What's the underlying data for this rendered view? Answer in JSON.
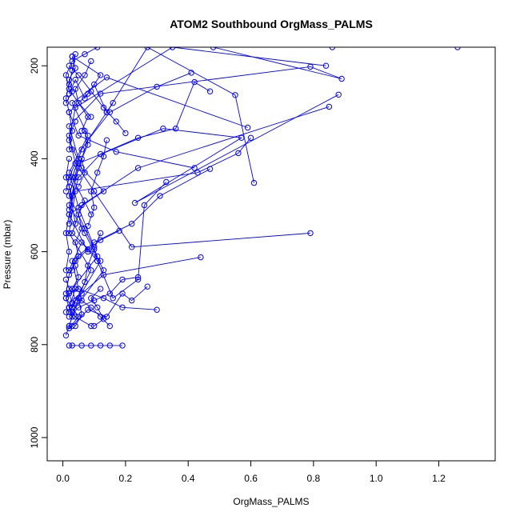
{
  "chart_data": {
    "type": "scatter",
    "title": "ATOM2 Southbound OrgMass_PALMS",
    "xlabel": "OrgMass_PALMS",
    "ylabel": "Pressure (mbar)",
    "xlim": [
      -0.05,
      1.38
    ],
    "ylim": [
      1050,
      160
    ],
    "y_reversed": true,
    "x_ticks": [
      0.0,
      0.2,
      0.4,
      0.6,
      0.8,
      1.0,
      1.2
    ],
    "x_tick_labels": [
      "0.0",
      "0.2",
      "0.4",
      "0.6",
      "0.8",
      "1.0",
      "1.2"
    ],
    "y_ticks": [
      200,
      400,
      600,
      800,
      1000
    ],
    "y_tick_labels": [
      "200",
      "400",
      "600",
      "800",
      "1000"
    ],
    "grid": false,
    "legend": "none",
    "color": "#0000ff",
    "series": [
      {
        "x": [
          0.86,
          1.26,
          0.48,
          0.89,
          0.79,
          0.12,
          0.02,
          0.05,
          0.03,
          0.09
        ],
        "y": [
          160,
          160,
          160,
          228,
          202,
          260,
          330,
          400,
          440,
          520
        ]
      },
      {
        "x": [
          0.84,
          0.35,
          0.04,
          0.02,
          0.06,
          0.13,
          0.02,
          0.08
        ],
        "y": [
          200,
          160,
          290,
          360,
          420,
          470,
          520,
          600
        ]
      },
      {
        "x": [
          0.88,
          0.23,
          0.57,
          0.32,
          0.05,
          0.02,
          0.07,
          0.11,
          0.03
        ],
        "y": [
          262,
          495,
          355,
          335,
          410,
          480,
          550,
          610,
          680
        ]
      },
      {
        "x": [
          0.85,
          0.24,
          0.06,
          0.03,
          0.12,
          0.05,
          0.02
        ],
        "y": [
          288,
          420,
          500,
          560,
          620,
          700,
          760
        ]
      },
      {
        "x": [
          0.59,
          0.14,
          0.03,
          0.08,
          0.02,
          0.05,
          0.1
        ],
        "y": [
          333,
          225,
          280,
          350,
          430,
          505,
          590
        ]
      },
      {
        "x": [
          0.6,
          0.56,
          0.43,
          0.04,
          0.02,
          0.09,
          0.03
        ],
        "y": [
          355,
          388,
          430,
          470,
          560,
          640,
          720
        ]
      },
      {
        "x": [
          0.61,
          0.55,
          0.27,
          0.14,
          0.06,
          0.02,
          0.04
        ],
        "y": [
          452,
          263,
          160,
          300,
          380,
          460,
          540
        ]
      },
      {
        "x": [
          0.79,
          0.22,
          0.1,
          0.05,
          0.02,
          0.07,
          0.13,
          0.03
        ],
        "y": [
          560,
          590,
          470,
          420,
          500,
          560,
          640,
          730
        ]
      },
      {
        "x": [
          0.44,
          0.13,
          0.06,
          0.02,
          0.04,
          0.09
        ],
        "y": [
          612,
          650,
          690,
          720,
          740,
          760
        ]
      },
      {
        "x": [
          0.42,
          0.17,
          0.05,
          0.02,
          0.08,
          0.12,
          0.03
        ],
        "y": [
          420,
          385,
          350,
          300,
          260,
          220,
          180
        ]
      },
      {
        "x": [
          0.47,
          0.31,
          0.22,
          0.1,
          0.03,
          0.05
        ],
        "y": [
          422,
          480,
          540,
          580,
          620,
          680
        ]
      },
      {
        "x": [
          0.47,
          0.42,
          0.36,
          0.24,
          0.12,
          0.05,
          0.02
        ],
        "y": [
          255,
          235,
          335,
          355,
          390,
          440,
          510
        ]
      },
      {
        "x": [
          0.41,
          0.3,
          0.15,
          0.08,
          0.04,
          0.02
        ],
        "y": [
          215,
          245,
          300,
          360,
          440,
          540
        ]
      },
      {
        "x": [
          0.33,
          0.26,
          0.24,
          0.16,
          0.11,
          0.06,
          0.02
        ],
        "y": [
          450,
          500,
          660,
          700,
          620,
          580,
          640
        ]
      },
      {
        "x": [
          0.3,
          0.19,
          0.13,
          0.05,
          0.02,
          0.03
        ],
        "y": [
          725,
          720,
          700,
          680,
          690,
          710
        ]
      },
      {
        "x": [
          0.27,
          0.22,
          0.19,
          0.14,
          0.08,
          0.03
        ],
        "y": [
          675,
          705,
          690,
          740,
          725,
          760
        ]
      },
      {
        "x": [
          0.24,
          0.19,
          0.15,
          0.1,
          0.05,
          0.02
        ],
        "y": [
          655,
          660,
          690,
          705,
          720,
          740
        ]
      },
      {
        "x": [
          0.2,
          0.17,
          0.13,
          0.09,
          0.05,
          0.02
        ],
        "y": [
          345,
          320,
          290,
          255,
          220,
          200
        ]
      },
      {
        "x": [
          0.18,
          0.12,
          0.08,
          0.04,
          0.02,
          0.01
        ],
        "y": [
          555,
          575,
          595,
          620,
          650,
          690
        ]
      },
      {
        "x": [
          0.16,
          0.14,
          0.1,
          0.07,
          0.04,
          0.02
        ],
        "y": [
          280,
          300,
          240,
          270,
          230,
          260
        ]
      },
      {
        "x": [
          0.15,
          0.12,
          0.09,
          0.06,
          0.03,
          0.01
        ],
        "y": [
          760,
          740,
          720,
          705,
          720,
          730
        ]
      },
      {
        "x": [
          0.11,
          0.07,
          0.03,
          0.01,
          0.02,
          0.05,
          0.09
        ],
        "y": [
          160,
          175,
          190,
          220,
          250,
          280,
          310
        ]
      },
      {
        "x": [
          0.02,
          0.05,
          0.03,
          0.01,
          0.04,
          0.02
        ],
        "y": [
          765,
          740,
          720,
          700,
          680,
          720
        ]
      },
      {
        "x": [
          0.02,
          0.03,
          0.06,
          0.09,
          0.12,
          0.15,
          0.19
        ],
        "y": [
          802,
          802,
          802,
          802,
          802,
          802,
          802
        ]
      },
      {
        "x": [
          0.01,
          0.02,
          0.03,
          0.02,
          0.01,
          0.02,
          0.01
        ],
        "y": [
          780,
          760,
          740,
          720,
          700,
          680,
          660
        ]
      },
      {
        "x": [
          0.01,
          0.02,
          0.01,
          0.02,
          0.03,
          0.01,
          0.02
        ],
        "y": [
          640,
          600,
          560,
          520,
          480,
          440,
          400
        ]
      },
      {
        "x": [
          0.02,
          0.03,
          0.02,
          0.01,
          0.02,
          0.03,
          0.04
        ],
        "y": [
          380,
          340,
          300,
          270,
          240,
          210,
          175
        ]
      },
      {
        "x": [
          0.04,
          0.06,
          0.05,
          0.07,
          0.08,
          0.1,
          0.12
        ],
        "y": [
          760,
          735,
          700,
          665,
          630,
          595,
          560
        ]
      },
      {
        "x": [
          0.08,
          0.1,
          0.09,
          0.11,
          0.13,
          0.14
        ],
        "y": [
          545,
          505,
          470,
          430,
          395,
          360
        ]
      },
      {
        "x": [
          0.06,
          0.08,
          0.05,
          0.04,
          0.07,
          0.09
        ],
        "y": [
          340,
          310,
          280,
          250,
          220,
          190
        ]
      },
      {
        "x": [
          0.03,
          0.05,
          0.04,
          0.06,
          0.05,
          0.07
        ],
        "y": [
          640,
          610,
          580,
          550,
          520,
          490
        ]
      },
      {
        "x": [
          0.01,
          0.02,
          0.04,
          0.03,
          0.02,
          0.04
        ],
        "y": [
          470,
          440,
          410,
          380,
          350,
          320
        ]
      },
      {
        "x": [
          0.02,
          0.04,
          0.03,
          0.05,
          0.04
        ],
        "y": [
          730,
          705,
          680,
          655,
          630
        ]
      },
      {
        "x": [
          0.01,
          0.03,
          0.02,
          0.04,
          0.03
        ],
        "y": [
          280,
          255,
          230,
          205,
          180
        ]
      },
      {
        "x": [
          0.1,
          0.13,
          0.11,
          0.09,
          0.12
        ],
        "y": [
          760,
          745,
          720,
          700,
          680
        ]
      },
      {
        "x": [
          0.05,
          0.07,
          0.06,
          0.08,
          0.07
        ],
        "y": [
          460,
          430,
          400,
          370,
          340
        ]
      }
    ]
  }
}
